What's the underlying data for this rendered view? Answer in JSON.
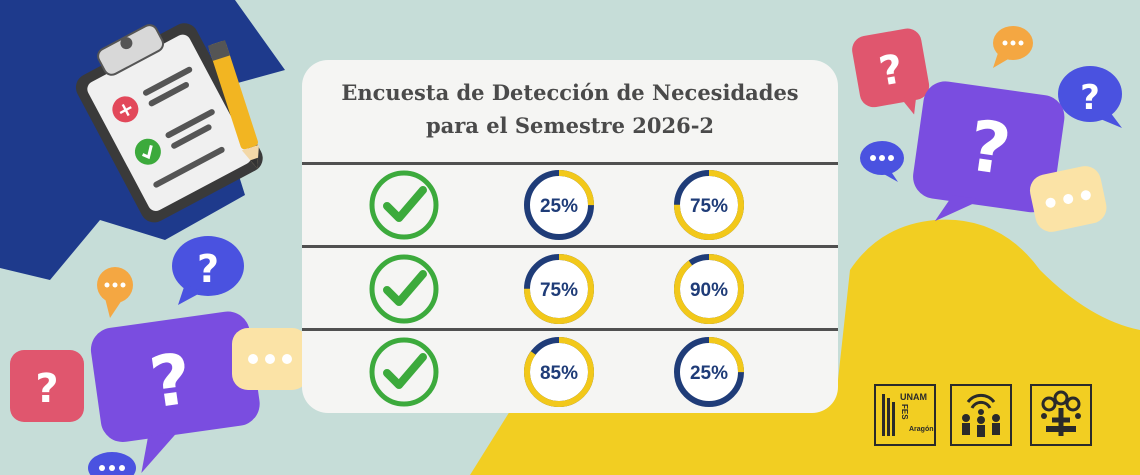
{
  "title": {
    "line1": "Encuesta de Detección de Necesidades",
    "line2": "para el Semestre 2026-2"
  },
  "rows": [
    {
      "status_icon": "checkmark-icon",
      "col1_pct": 25,
      "col2_pct": 75
    },
    {
      "status_icon": "checkmark-icon",
      "col1_pct": 75,
      "col2_pct": 90
    },
    {
      "status_icon": "checkmark-icon",
      "col1_pct": 85,
      "col2_pct": 25
    }
  ],
  "logos": {
    "unam": "UNAM",
    "fes": "FES",
    "campus": "Aragón"
  },
  "colors": {
    "background": "#c6ddd8",
    "navy": "#1e3a8c",
    "yellow": "#f2ce22",
    "check_green": "#3caa3c",
    "ring_track": "#1f3c78",
    "ring_fill": "#f2c81a",
    "bubble_purple": "#7a4de0",
    "bubble_pink": "#e0566e",
    "bubble_orange": "#f4a742",
    "bubble_cream": "#fbe3a6",
    "bubble_blue": "#4a52e0"
  }
}
